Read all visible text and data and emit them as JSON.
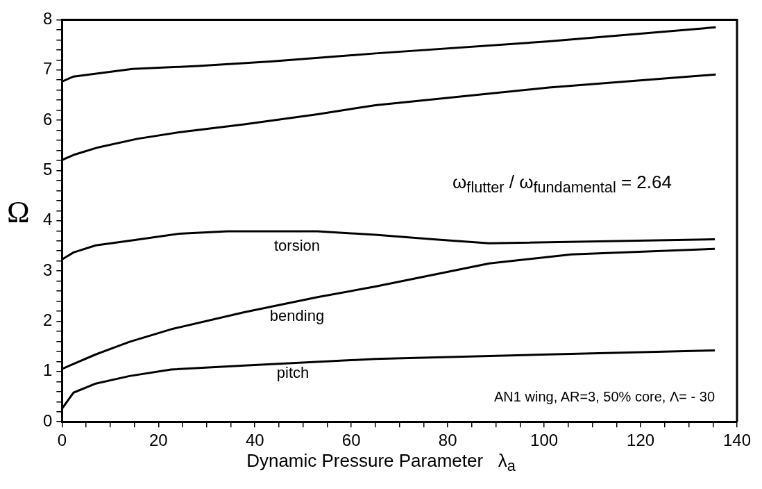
{
  "chart_data": {
    "type": "line",
    "xlabel": "Dynamic Pressure Parameter   λ$_{a}$",
    "ylabel": "Ω",
    "xlim": [
      0,
      140
    ],
    "ylim": [
      0,
      8
    ],
    "xticks": [
      0,
      {
        "value": 5,
        "label": null
      },
      {
        "value": 10,
        "label": null
      },
      {
        "value": 15,
        "label": null
      },
      20,
      {
        "value": 25,
        "label": null
      },
      {
        "value": 30,
        "label": null
      },
      {
        "value": 35,
        "label": null
      },
      40,
      {
        "value": 45,
        "label": null
      },
      {
        "value": 50,
        "label": null
      },
      {
        "value": 55,
        "label": null
      },
      60,
      {
        "value": 65,
        "label": null
      },
      {
        "value": 70,
        "label": null
      },
      {
        "value": 75,
        "label": null
      },
      80,
      {
        "value": 85,
        "label": null
      },
      {
        "value": 90,
        "label": null
      },
      {
        "value": 95,
        "label": null
      },
      100,
      {
        "value": 105,
        "label": null
      },
      {
        "value": 110,
        "label": null
      },
      {
        "value": 115,
        "label": null
      },
      120,
      {
        "value": 125,
        "label": null
      },
      {
        "value": 130,
        "label": null
      },
      {
        "value": 135,
        "label": null
      },
      140
    ],
    "yticks": [
      0,
      {
        "value": 0.2,
        "label": null
      },
      {
        "value": 0.4,
        "label": null
      },
      {
        "value": 0.6,
        "label": null
      },
      {
        "value": 0.8,
        "label": null
      },
      1,
      {
        "value": 1.2,
        "label": null
      },
      {
        "value": 1.4,
        "label": null
      },
      {
        "value": 1.6,
        "label": null
      },
      {
        "value": 1.8,
        "label": null
      },
      2,
      {
        "value": 2.2,
        "label": null
      },
      {
        "value": 2.4,
        "label": null
      },
      {
        "value": 2.6,
        "label": null
      },
      {
        "value": 2.8,
        "label": null
      },
      3,
      {
        "value": 3.2,
        "label": null
      },
      {
        "value": 3.4,
        "label": null
      },
      {
        "value": 3.6,
        "label": null
      },
      {
        "value": 3.8,
        "label": null
      },
      4,
      {
        "value": 4.2,
        "label": null
      },
      {
        "value": 4.4,
        "label": null
      },
      {
        "value": 4.6,
        "label": null
      },
      {
        "value": 4.8,
        "label": null
      },
      5,
      {
        "value": 5.2,
        "label": null
      },
      {
        "value": 5.4,
        "label": null
      },
      {
        "value": 5.6,
        "label": null
      },
      {
        "value": 5.8,
        "label": null
      },
      6,
      {
        "value": 6.2,
        "label": null
      },
      {
        "value": 6.4,
        "label": null
      },
      {
        "value": 6.6,
        "label": null
      },
      {
        "value": 6.8,
        "label": null
      },
      7,
      {
        "value": 7.2,
        "label": null
      },
      {
        "value": 7.4,
        "label": null
      },
      {
        "value": 7.6,
        "label": null
      },
      {
        "value": 7.8,
        "label": null
      },
      8
    ],
    "grid": false,
    "legend": false,
    "marker": "none",
    "line_style": "solid",
    "series": [
      {
        "color": "#000000",
        "x": [
          0,
          2.4,
          14.6,
          28.2,
          43.3,
          65,
          101,
          135.6
        ],
        "values": [
          6.77,
          6.87,
          7.02,
          7.08,
          7.17,
          7.33,
          7.57,
          7.85
        ]
      },
      {
        "color": "#000000",
        "x": [
          0,
          2.4,
          7.5,
          15.6,
          24.2,
          37.8,
          53,
          65,
          101,
          135.6
        ],
        "values": [
          5.21,
          5.31,
          5.46,
          5.63,
          5.76,
          5.92,
          6.12,
          6.3,
          6.65,
          6.91
        ]
      },
      {
        "color": "#000000",
        "x": [
          0,
          2.4,
          7,
          14.6,
          24.2,
          34.3,
          53,
          65,
          77,
          88.6,
          135.4
        ],
        "values": [
          3.23,
          3.37,
          3.51,
          3.61,
          3.74,
          3.79,
          3.79,
          3.72,
          3.63,
          3.55,
          3.63
        ]
      },
      {
        "color": "#000000",
        "x": [
          0,
          2.4,
          7,
          14,
          22.6,
          37.8,
          53,
          65,
          88.6,
          105.7,
          135.4
        ],
        "values": [
          1.05,
          1.15,
          1.34,
          1.59,
          1.84,
          2.18,
          2.48,
          2.69,
          3.15,
          3.33,
          3.44
        ]
      },
      {
        "color": "#000000",
        "x": [
          0,
          2.4,
          7,
          14,
          22.6,
          37.8,
          65,
          101,
          135.4
        ],
        "values": [
          0.26,
          0.58,
          0.76,
          0.91,
          1.04,
          1.12,
          1.25,
          1.34,
          1.42
        ]
      }
    ],
    "annotations": [
      "torsion",
      "bending",
      "pitch",
      "ω$_{flutter}$ / ω$_{fundamental}$ = 2.64",
      "AN1 wing, AR=3, 50% core, Λ= - 30"
    ]
  }
}
